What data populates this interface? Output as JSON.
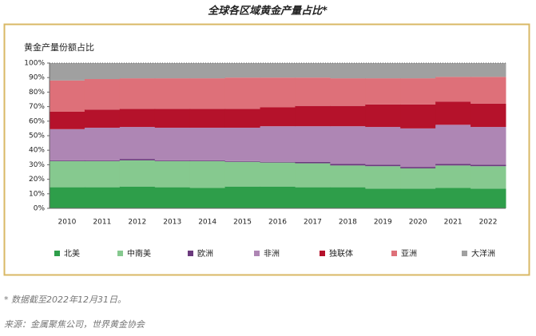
{
  "chart_data": {
    "type": "stacked_bar_step",
    "title": "全球各区域黄金产量占比*",
    "y_label": "黄金产量份额占比",
    "note": "* 数据截至2022年12月31日。",
    "source": "来源：金属聚焦公司，世界黄金协会",
    "categories": [
      "2010",
      "2011",
      "2012",
      "2013",
      "2014",
      "2015",
      "2016",
      "2017",
      "2018",
      "2019",
      "2020",
      "2021",
      "2022"
    ],
    "series": [
      {
        "name": "北美",
        "color": "#2e9e4a",
        "values": [
          14.5,
          14.5,
          15,
          14.5,
          14,
          15,
          15,
          14.5,
          14.5,
          13.5,
          13.5,
          14,
          13.5
        ]
      },
      {
        "name": "中南美",
        "color": "#86c98f",
        "values": [
          18,
          18,
          18,
          18,
          18.5,
          17,
          16.5,
          16.5,
          15,
          15.5,
          14,
          15.5,
          15.5
        ]
      },
      {
        "name": "欧洲",
        "color": "#6b3a7d",
        "values": [
          0.5,
          0.5,
          1,
          0.5,
          0.5,
          0.5,
          0.5,
          1,
          1,
          1,
          1,
          1,
          1
        ]
      },
      {
        "name": "非洲",
        "color": "#ae86b4",
        "values": [
          21.5,
          22.5,
          22,
          22.5,
          22.5,
          23,
          24.5,
          24.5,
          26,
          26,
          26.5,
          27,
          26
        ]
      },
      {
        "name": "独联体",
        "color": "#b5122b",
        "values": [
          12,
          12.5,
          12.5,
          13,
          13,
          13,
          13,
          14,
          14,
          15.5,
          16.5,
          16,
          16
        ]
      },
      {
        "name": "亚洲",
        "color": "#de7079",
        "values": [
          21.5,
          21,
          21,
          21,
          21,
          21.5,
          20.5,
          19.5,
          19,
          18,
          18,
          17,
          18.5
        ]
      },
      {
        "name": "大洋洲",
        "color": "#a0a0a0",
        "values": [
          12,
          11,
          10.5,
          10.5,
          10.5,
          10,
          10,
          10,
          10.5,
          10.5,
          10.5,
          9.5,
          9.5
        ]
      }
    ],
    "ylim": [
      0,
      100
    ],
    "yticks": [
      {
        "value": 0,
        "label": "0%"
      },
      {
        "value": 10,
        "label": "10%"
      },
      {
        "value": 20,
        "label": "20%"
      },
      {
        "value": 30,
        "label": "30%"
      },
      {
        "value": 40,
        "label": "40%"
      },
      {
        "value": 50,
        "label": "50%"
      },
      {
        "value": 60,
        "label": "60%"
      },
      {
        "value": 70,
        "label": "70%"
      },
      {
        "value": 80,
        "label": "80%"
      },
      {
        "value": 90,
        "label": "90%"
      },
      {
        "value": 100,
        "label": "100%"
      }
    ]
  }
}
